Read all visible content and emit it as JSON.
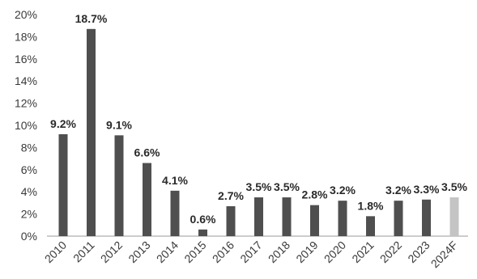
{
  "chart_data": {
    "type": "bar",
    "categories": [
      "2010",
      "2011",
      "2012",
      "2013",
      "2014",
      "2015",
      "2016",
      "2017",
      "2018",
      "2019",
      "2020",
      "2021",
      "2022",
      "2023",
      "2024F"
    ],
    "values": [
      9.2,
      18.7,
      9.1,
      6.6,
      4.1,
      0.6,
      2.7,
      3.5,
      3.5,
      2.8,
      3.2,
      1.8,
      3.2,
      3.3,
      3.5
    ],
    "data_labels": [
      "9.2%",
      "18.7%",
      "9.1%",
      "6.6%",
      "4.1%",
      "0.6%",
      "2.7%",
      "3.5%",
      "3.5%",
      "2.8%",
      "3.2%",
      "1.8%",
      "3.2%",
      "3.3%",
      "3.5%"
    ],
    "y_ticks": [
      "0%",
      "2%",
      "4%",
      "6%",
      "8%",
      "10%",
      "12%",
      "14%",
      "16%",
      "18%",
      "20%"
    ],
    "ylim": [
      0,
      20
    ],
    "grid": false,
    "legend": "none",
    "colors": {
      "bar": "#4f4f4f",
      "forecast_bar": "#c4c4c4",
      "axis": "#9a9a9a",
      "text": "#3a3a3a"
    }
  }
}
